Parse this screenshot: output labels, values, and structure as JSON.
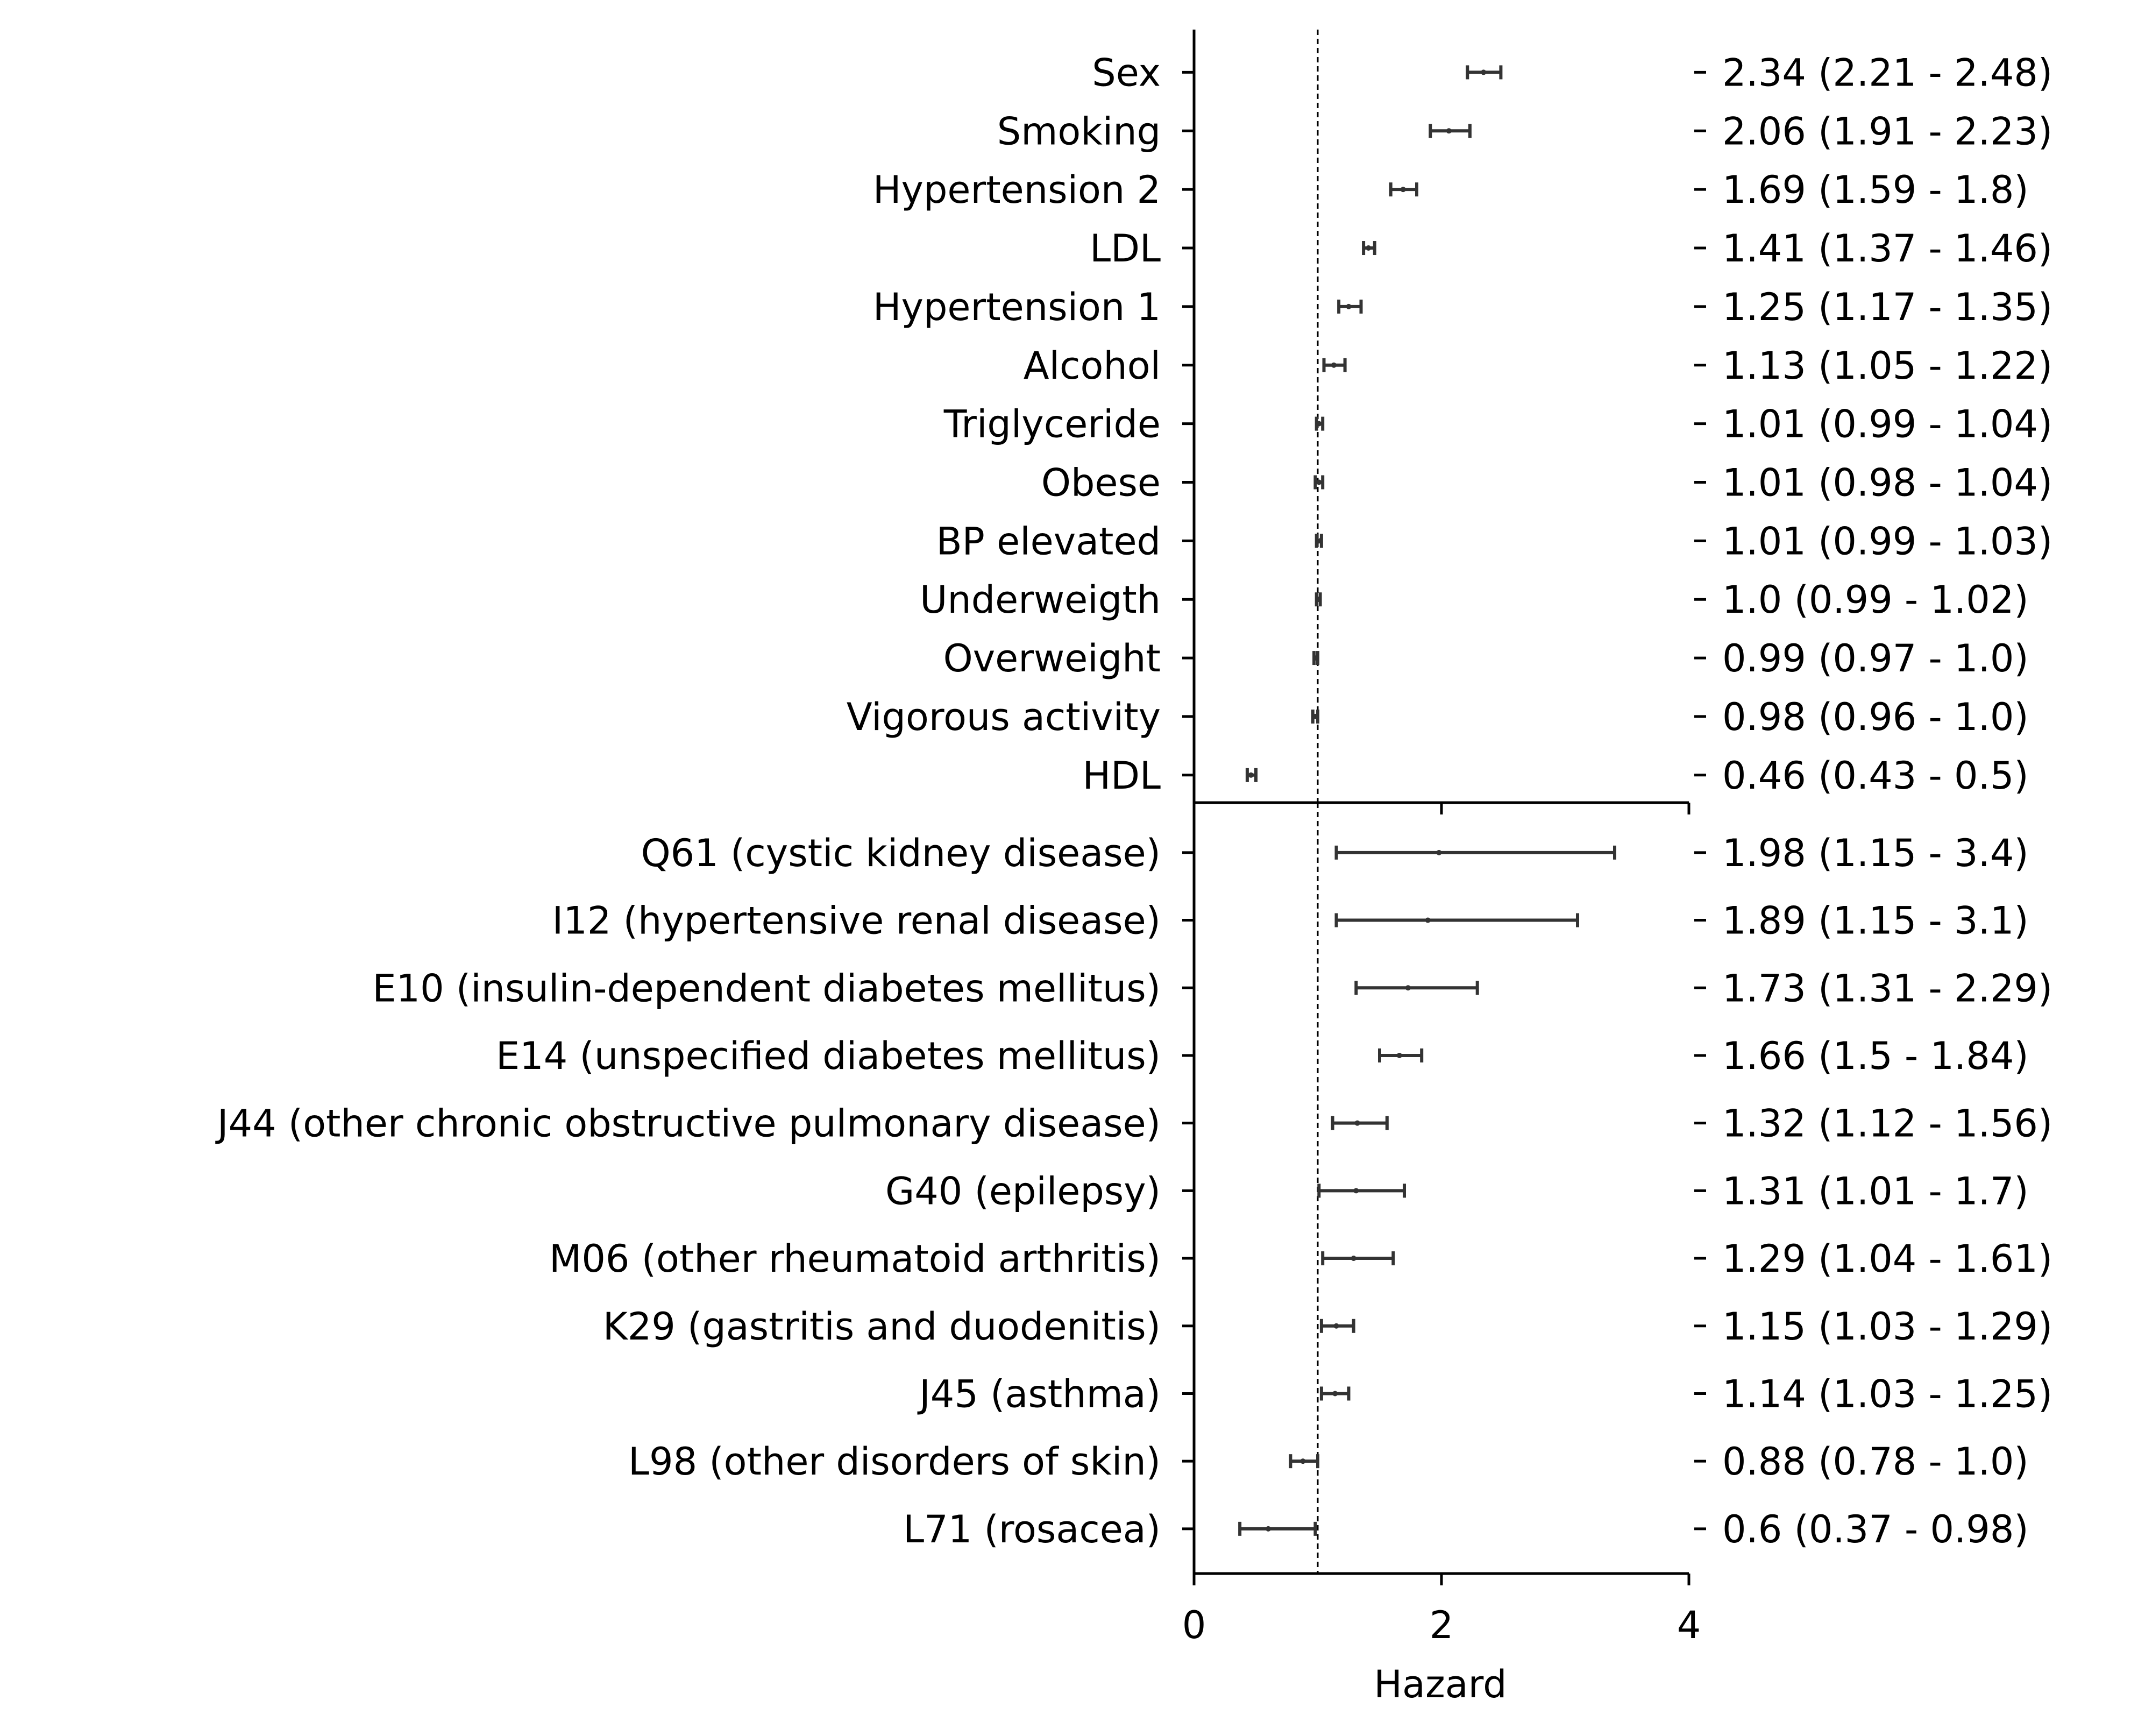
{
  "chart_data": {
    "type": "forest",
    "xlabel": "Hazard",
    "xlim": [
      0,
      4
    ],
    "xticks": [
      "0",
      "2",
      "4"
    ],
    "reference_line": 1,
    "panels": [
      {
        "name": "risk-factors",
        "rows": [
          {
            "label": "Sex",
            "hr": 2.34,
            "lo": 2.21,
            "hi": 2.48,
            "ci_text": "2.34 (2.21 - 2.48)"
          },
          {
            "label": "Smoking",
            "hr": 2.06,
            "lo": 1.91,
            "hi": 2.23,
            "ci_text": "2.06 (1.91 - 2.23)"
          },
          {
            "label": "Hypertension 2",
            "hr": 1.69,
            "lo": 1.59,
            "hi": 1.8,
            "ci_text": "1.69 (1.59 - 1.8)"
          },
          {
            "label": "LDL",
            "hr": 1.41,
            "lo": 1.37,
            "hi": 1.46,
            "ci_text": "1.41 (1.37 - 1.46)"
          },
          {
            "label": "Hypertension 1",
            "hr": 1.25,
            "lo": 1.17,
            "hi": 1.35,
            "ci_text": "1.25 (1.17 - 1.35)"
          },
          {
            "label": "Alcohol",
            "hr": 1.13,
            "lo": 1.05,
            "hi": 1.22,
            "ci_text": "1.13 (1.05 - 1.22)"
          },
          {
            "label": "Triglyceride",
            "hr": 1.01,
            "lo": 0.99,
            "hi": 1.04,
            "ci_text": "1.01 (0.99 - 1.04)"
          },
          {
            "label": "Obese",
            "hr": 1.01,
            "lo": 0.98,
            "hi": 1.04,
            "ci_text": "1.01 (0.98 - 1.04)"
          },
          {
            "label": "BP elevated",
            "hr": 1.01,
            "lo": 0.99,
            "hi": 1.03,
            "ci_text": "1.01 (0.99 - 1.03)"
          },
          {
            "label": "Underweigth",
            "hr": 1.0,
            "lo": 0.99,
            "hi": 1.02,
            "ci_text": "1.0 (0.99 - 1.02)"
          },
          {
            "label": "Overweight",
            "hr": 0.99,
            "lo": 0.97,
            "hi": 1.0,
            "ci_text": "0.99 (0.97 - 1.0)"
          },
          {
            "label": "Vigorous activity",
            "hr": 0.98,
            "lo": 0.96,
            "hi": 1.0,
            "ci_text": "0.98 (0.96 - 1.0)"
          },
          {
            "label": "HDL",
            "hr": 0.46,
            "lo": 0.43,
            "hi": 0.5,
            "ci_text": "0.46 (0.43 - 0.5)"
          }
        ]
      },
      {
        "name": "diagnoses",
        "rows": [
          {
            "label": "Q61 (cystic kidney disease)",
            "hr": 1.98,
            "lo": 1.15,
            "hi": 3.4,
            "ci_text": "1.98 (1.15 - 3.4)"
          },
          {
            "label": "I12 (hypertensive renal disease)",
            "hr": 1.89,
            "lo": 1.15,
            "hi": 3.1,
            "ci_text": "1.89 (1.15 - 3.1)"
          },
          {
            "label": "E10 (insulin-dependent diabetes mellitus)",
            "hr": 1.73,
            "lo": 1.31,
            "hi": 2.29,
            "ci_text": "1.73 (1.31 - 2.29)"
          },
          {
            "label": "E14 (unspecified diabetes mellitus)",
            "hr": 1.66,
            "lo": 1.5,
            "hi": 1.84,
            "ci_text": "1.66 (1.5 - 1.84)"
          },
          {
            "label": "J44 (other chronic obstructive pulmonary disease)",
            "hr": 1.32,
            "lo": 1.12,
            "hi": 1.56,
            "ci_text": "1.32 (1.12 - 1.56)"
          },
          {
            "label": "G40 (epilepsy)",
            "hr": 1.31,
            "lo": 1.01,
            "hi": 1.7,
            "ci_text": "1.31 (1.01 - 1.7)"
          },
          {
            "label": "M06 (other rheumatoid arthritis)",
            "hr": 1.29,
            "lo": 1.04,
            "hi": 1.61,
            "ci_text": "1.29 (1.04 - 1.61)"
          },
          {
            "label": "K29 (gastritis and duodenitis)",
            "hr": 1.15,
            "lo": 1.03,
            "hi": 1.29,
            "ci_text": "1.15 (1.03 - 1.29)"
          },
          {
            "label": "J45 (asthma)",
            "hr": 1.14,
            "lo": 1.03,
            "hi": 1.25,
            "ci_text": "1.14 (1.03 - 1.25)"
          },
          {
            "label": "L98 (other disorders of skin)",
            "hr": 0.88,
            "lo": 0.78,
            "hi": 1.0,
            "ci_text": "0.88 (0.78 - 1.0)"
          },
          {
            "label": "L71 (rosacea)",
            "hr": 0.6,
            "lo": 0.37,
            "hi": 0.98,
            "ci_text": "0.6 (0.37 - 0.98)"
          }
        ]
      }
    ],
    "colors": {
      "line": "#333333",
      "axis": "#000000"
    }
  }
}
